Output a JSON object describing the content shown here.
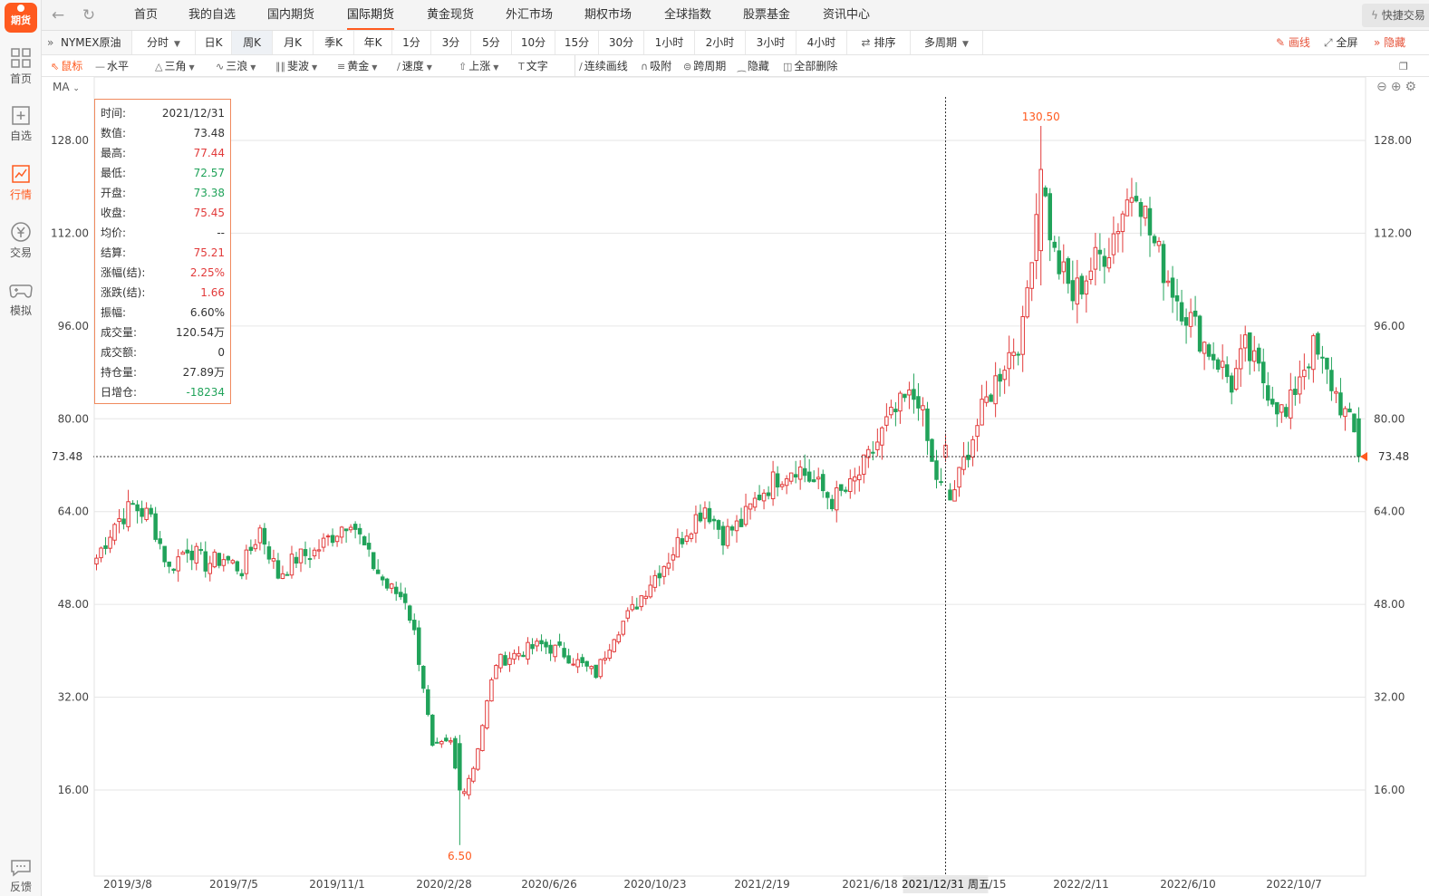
{
  "app": {
    "logo_text": "期货"
  },
  "sidebar": {
    "items": [
      {
        "label": "首页",
        "icon": "grid-icon",
        "active": false
      },
      {
        "label": "自选",
        "icon": "clipboard-plus-icon",
        "active": false
      },
      {
        "label": "行情",
        "icon": "trend-chart-icon",
        "active": true
      },
      {
        "label": "交易",
        "icon": "yen-circle-icon",
        "active": false
      },
      {
        "label": "模拟",
        "icon": "gamepad-icon",
        "active": false
      }
    ],
    "feedback_label": "反馈"
  },
  "topnav": {
    "tabs": [
      "首页",
      "我的自选",
      "国内期货",
      "国际期货",
      "黄金现货",
      "外汇市场",
      "期权市场",
      "全球指数",
      "股票基金",
      "资讯中心"
    ],
    "active_tab": "国际期货",
    "quick_label": "快捷交易"
  },
  "periodbar": {
    "symbol": "NYMEX原油",
    "cells": [
      "分时",
      "日K",
      "周K",
      "月K",
      "季K",
      "年K",
      "1分",
      "3分",
      "5分",
      "10分",
      "15分",
      "30分",
      "1小时",
      "2小时",
      "3小时",
      "4小时",
      "排序",
      "多周期"
    ],
    "active": "周K",
    "draw_label": "画线",
    "fullscreen_label": "全屏",
    "hide_label": "隐藏"
  },
  "drawbar": {
    "tools": [
      "鼠标",
      "水平",
      "三角",
      "三浪",
      "斐波",
      "黄金",
      "速度",
      "上涨",
      "文字",
      "连续画线",
      "吸附",
      "跨周期",
      "隐藏",
      "全部删除"
    ]
  },
  "chart": {
    "ma_label": "MA",
    "current_price_label": "73.48",
    "crosshair_date_label": "2021/12/31 周五",
    "max_label": "130.50",
    "min_label": "6.50"
  },
  "infobox": {
    "rows": [
      {
        "k": "时间:",
        "v": "2021/12/31",
        "color": "#333333"
      },
      {
        "k": "数值:",
        "v": "73.48",
        "color": "#333333"
      },
      {
        "k": "最高:",
        "v": "77.44",
        "color": "#e23b3b"
      },
      {
        "k": "最低:",
        "v": "72.57",
        "color": "#21a35a"
      },
      {
        "k": "开盘:",
        "v": "73.38",
        "color": "#21a35a"
      },
      {
        "k": "收盘:",
        "v": "75.45",
        "color": "#e23b3b"
      },
      {
        "k": "均价:",
        "v": "--",
        "color": "#333333"
      },
      {
        "k": "结算:",
        "v": "75.21",
        "color": "#e23b3b"
      },
      {
        "k": "涨幅(结):",
        "v": "2.25%",
        "color": "#e23b3b"
      },
      {
        "k": "涨跌(结):",
        "v": "1.66",
        "color": "#e23b3b"
      },
      {
        "k": "振幅:",
        "v": "6.60%",
        "color": "#333333"
      },
      {
        "k": "成交量:",
        "v": "120.54万",
        "color": "#333333"
      },
      {
        "k": "成交额:",
        "v": "0",
        "color": "#333333"
      },
      {
        "k": "持仓量:",
        "v": "27.89万",
        "color": "#333333"
      },
      {
        "k": "日增仓:",
        "v": "-18234",
        "color": "#21a35a"
      }
    ]
  },
  "colors": {
    "up": "#e23b3b",
    "down": "#21a35a",
    "accent": "#ff5a1f",
    "grid": "#e6e6e6"
  },
  "chart_data": {
    "type": "candlestick",
    "ylim": [
      3.5,
      135.5
    ],
    "yticks": [
      16,
      32,
      48,
      64,
      80,
      96,
      112,
      128
    ],
    "ytick_labels": [
      "16.00",
      "32.00",
      "48.00",
      "64.00",
      "80.00",
      "96.00",
      "112.00",
      "128.00"
    ],
    "xtick_labels": [
      "2019/3/8",
      "2019/7/5",
      "2019/11/1",
      "2020/2/28",
      "2020/6/26",
      "2020/10/23",
      "2021/2/19",
      "2021/6/18",
      "2021/10/15",
      "2022/2/11",
      "2022/6/10",
      "2022/10/7"
    ],
    "current_value": 73.48,
    "max_value": 130.5,
    "min_value": 6.5,
    "anchors": [
      [
        0,
        56
      ],
      [
        4,
        62
      ],
      [
        8,
        65
      ],
      [
        12,
        63
      ],
      [
        16,
        54
      ],
      [
        20,
        58
      ],
      [
        24,
        55
      ],
      [
        28,
        56
      ],
      [
        32,
        54
      ],
      [
        36,
        61
      ],
      [
        40,
        53
      ],
      [
        44,
        56
      ],
      [
        48,
        57
      ],
      [
        52,
        60
      ],
      [
        56,
        63
      ],
      [
        60,
        56
      ],
      [
        64,
        51
      ],
      [
        68,
        49
      ],
      [
        70,
        43
      ],
      [
        72,
        34
      ],
      [
        74,
        23
      ],
      [
        78,
        24
      ],
      [
        80,
        15
      ],
      [
        83,
        20
      ],
      [
        86,
        31
      ],
      [
        88,
        38
      ],
      [
        91,
        39
      ],
      [
        94,
        40
      ],
      [
        98,
        41
      ],
      [
        102,
        40
      ],
      [
        106,
        38
      ],
      [
        110,
        36
      ],
      [
        114,
        43
      ],
      [
        118,
        47
      ],
      [
        122,
        52
      ],
      [
        126,
        56
      ],
      [
        130,
        61
      ],
      [
        134,
        65
      ],
      [
        138,
        60
      ],
      [
        142,
        62
      ],
      [
        146,
        67
      ],
      [
        150,
        70
      ],
      [
        154,
        72
      ],
      [
        158,
        69
      ],
      [
        162,
        66
      ],
      [
        166,
        68
      ],
      [
        170,
        73
      ],
      [
        174,
        79
      ],
      [
        178,
        83
      ],
      [
        181,
        84
      ],
      [
        184,
        72
      ],
      [
        186,
        68
      ],
      [
        188,
        66
      ],
      [
        190,
        70
      ],
      [
        192,
        75
      ],
      [
        196,
        83
      ],
      [
        200,
        90
      ],
      [
        204,
        95
      ],
      [
        206,
        110
      ],
      [
        208,
        122
      ],
      [
        211,
        108
      ],
      [
        215,
        101
      ],
      [
        219,
        106
      ],
      [
        223,
        110
      ],
      [
        226,
        116
      ],
      [
        229,
        121
      ],
      [
        232,
        112
      ],
      [
        235,
        106
      ],
      [
        238,
        101
      ],
      [
        241,
        97
      ],
      [
        244,
        93
      ],
      [
        247,
        90
      ],
      [
        250,
        86
      ],
      [
        253,
        92
      ],
      [
        256,
        88
      ],
      [
        259,
        84
      ],
      [
        262,
        80
      ],
      [
        265,
        88
      ],
      [
        268,
        92
      ],
      [
        272,
        86
      ],
      [
        276,
        79
      ],
      [
        278,
        75.5
      ]
    ],
    "special_candles": [
      {
        "index": 187,
        "open": 73.38,
        "high": 77.44,
        "low": 72.57,
        "close": 75.45
      },
      {
        "index": 208,
        "open": 109.0,
        "high": 130.5,
        "low": 103.0,
        "close": 123.0
      },
      {
        "index": 80,
        "open": 24.0,
        "high": 25.5,
        "low": 6.5,
        "close": 16.0
      },
      {
        "index": 278,
        "open": 80.0,
        "high": 82.0,
        "low": 72.5,
        "close": 73.48
      }
    ]
  }
}
